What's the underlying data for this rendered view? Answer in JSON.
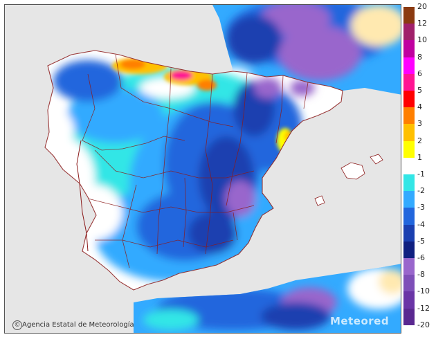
{
  "map": {
    "credit": "Agencia Estatal de Meteorología",
    "credit_symbol": "©",
    "watermark": "Meteored",
    "colors": {
      "sea": "#e6e6e6",
      "land_neutral": "#ffffff",
      "border": "#8b1a1a"
    }
  },
  "legend": {
    "ticks": [
      "20",
      "12",
      "10",
      "8",
      "6",
      "5",
      "4",
      "3",
      "2",
      "1",
      "-1",
      "-2",
      "-3",
      "-4",
      "-5",
      "-6",
      "-8",
      "-10",
      "-12",
      "-20"
    ],
    "colors": [
      "#8b3a10",
      "#a0206a",
      "#c000a0",
      "#ff00ff",
      "#ff1493",
      "#ff0000",
      "#ff7f00",
      "#ffc000",
      "#ffff00",
      "#ffffff",
      "#33e6e6",
      "#33aaff",
      "#2266dd",
      "#1a3fb0",
      "#0f1f80",
      "#9966cc",
      "#7e4fb8",
      "#6a35a6",
      "#5a2890"
    ]
  }
}
